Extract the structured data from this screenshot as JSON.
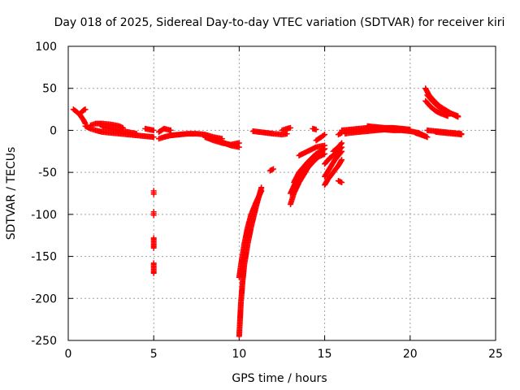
{
  "chart_data": {
    "type": "scatter",
    "title": "Day 018 of 2025, Sidereal Day-to-day VTEC variation (SDTVAR) for receiver kiri",
    "xlabel": "GPS time / hours",
    "ylabel": "SDTVAR / TECUs",
    "xlim": [
      0,
      25
    ],
    "ylim": [
      -250,
      100
    ],
    "xticks": [
      0,
      5,
      10,
      15,
      20,
      25
    ],
    "yticks": [
      100,
      50,
      0,
      -50,
      -100,
      -150,
      -200,
      -250
    ],
    "grid": true,
    "marker": "+",
    "color": "#ff0000",
    "segments": [
      {
        "id": "s1",
        "x": [
          0.3,
          0.5,
          0.7,
          0.9,
          1.0
        ],
        "y": [
          25,
          22,
          18,
          12,
          8
        ]
      },
      {
        "id": "s2",
        "x": [
          0.7,
          0.8,
          0.9,
          1.0
        ],
        "y": [
          20,
          22,
          24,
          25
        ]
      },
      {
        "id": "s3",
        "x": [
          1.0,
          1.3,
          1.6,
          2.0,
          2.5,
          3.0,
          3.5,
          4.0,
          4.5,
          5.0
        ],
        "y": [
          5,
          2,
          0,
          -2,
          -3,
          -4,
          -5,
          -6,
          -7,
          -8
        ]
      },
      {
        "id": "s4",
        "x": [
          1.3,
          1.6,
          2.0,
          2.5,
          3.0,
          3.2
        ],
        "y": [
          6,
          8,
          8,
          7,
          5,
          3
        ]
      },
      {
        "id": "s5",
        "x": [
          2.0,
          2.5,
          3.0,
          3.5,
          4.0
        ],
        "y": [
          4,
          2,
          0,
          -2,
          -4
        ]
      },
      {
        "id": "s6",
        "x": [
          4.5,
          5.0
        ],
        "y": [
          2,
          0
        ]
      },
      {
        "id": "s7",
        "x": [
          5.0,
          5.0,
          5.0
        ],
        "y": [
          -72,
          -74,
          -76
        ]
      },
      {
        "id": "s8",
        "x": [
          5.0,
          5.0,
          5.0
        ],
        "y": [
          -97,
          -99,
          -101
        ]
      },
      {
        "id": "s9",
        "x": [
          5.0,
          5.0,
          5.0,
          5.0,
          5.0
        ],
        "y": [
          -128,
          -131,
          -134,
          -137,
          -140
        ]
      },
      {
        "id": "s10",
        "x": [
          5.0,
          5.0,
          5.0,
          5.0,
          5.0
        ],
        "y": [
          -158,
          -161,
          -164,
          -167,
          -170
        ]
      },
      {
        "id": "s11",
        "x": [
          5.3,
          5.6,
          6.0,
          6.5,
          7.0,
          7.5,
          8.0,
          8.5,
          9.0
        ],
        "y": [
          -10,
          -8,
          -6,
          -5,
          -4,
          -4,
          -5,
          -8,
          -10
        ]
      },
      {
        "id": "s12",
        "x": [
          5.3,
          5.6,
          6.0
        ],
        "y": [
          -2,
          2,
          0
        ]
      },
      {
        "id": "s13",
        "x": [
          8.0,
          8.5,
          9.0,
          9.5,
          10.0
        ],
        "y": [
          -8,
          -12,
          -15,
          -17,
          -15
        ]
      },
      {
        "id": "s14",
        "x": [
          9.0,
          9.5,
          10.0
        ],
        "y": [
          -14,
          -18,
          -20
        ]
      },
      {
        "id": "s15",
        "x": [
          10.0,
          10.05,
          10.1,
          10.2,
          10.3,
          10.5,
          10.7,
          11.0,
          11.3
        ],
        "y": [
          -245,
          -225,
          -205,
          -180,
          -160,
          -135,
          -115,
          -90,
          -68
        ]
      },
      {
        "id": "s16",
        "x": [
          10.0,
          10.1,
          10.2,
          10.3,
          10.5,
          10.7,
          11.0,
          11.3
        ],
        "y": [
          -175,
          -160,
          -148,
          -135,
          -115,
          -100,
          -85,
          -72
        ]
      },
      {
        "id": "s17",
        "x": [
          11.8,
          12.0
        ],
        "y": [
          -48,
          -46
        ]
      },
      {
        "id": "s18",
        "x": [
          10.8,
          11.2,
          11.6,
          12.0,
          12.5,
          12.8
        ],
        "y": [
          -1,
          -2,
          -3,
          -4,
          -5,
          -4
        ]
      },
      {
        "id": "s19",
        "x": [
          12.5,
          12.8,
          13.0
        ],
        "y": [
          0,
          2,
          3
        ]
      },
      {
        "id": "s20",
        "x": [
          13.0,
          13.2,
          13.5,
          13.8,
          14.0,
          14.3,
          14.6,
          15.0
        ],
        "y": [
          -88,
          -75,
          -62,
          -52,
          -45,
          -38,
          -32,
          -28
        ]
      },
      {
        "id": "s21",
        "x": [
          13.0,
          13.3,
          13.6,
          14.0,
          14.3,
          14.6,
          15.0
        ],
        "y": [
          -75,
          -62,
          -50,
          -40,
          -33,
          -28,
          -22
        ]
      },
      {
        "id": "s22",
        "x": [
          13.2,
          13.5,
          14.0,
          14.5,
          15.0
        ],
        "y": [
          -62,
          -50,
          -38,
          -28,
          -22
        ]
      },
      {
        "id": "s23",
        "x": [
          13.5,
          14.0,
          14.5,
          15.0
        ],
        "y": [
          -30,
          -25,
          -20,
          -18
        ]
      },
      {
        "id": "s24",
        "x": [
          14.5,
          14.8,
          15.0
        ],
        "y": [
          -12,
          -8,
          -5
        ]
      },
      {
        "id": "s25",
        "x": [
          14.3,
          14.5
        ],
        "y": [
          2,
          1
        ]
      },
      {
        "id": "s26",
        "x": [
          15.0,
          15.2,
          15.5,
          15.8,
          16.0
        ],
        "y": [
          -65,
          -58,
          -50,
          -42,
          -35
        ]
      },
      {
        "id": "s27",
        "x": [
          15.0,
          15.3,
          15.6,
          16.0
        ],
        "y": [
          -55,
          -45,
          -35,
          -25
        ]
      },
      {
        "id": "s28",
        "x": [
          15.0,
          15.3,
          15.6,
          16.0
        ],
        "y": [
          -40,
          -33,
          -28,
          -20
        ]
      },
      {
        "id": "s29",
        "x": [
          15.5,
          15.8,
          16.0
        ],
        "y": [
          -25,
          -20,
          -15
        ]
      },
      {
        "id": "s30",
        "x": [
          15.8,
          16.0
        ],
        "y": [
          -60,
          -62
        ]
      },
      {
        "id": "s31",
        "x": [
          15.8,
          16.0
        ],
        "y": [
          -5,
          -3
        ]
      },
      {
        "id": "s32",
        "x": [
          16.0,
          16.5,
          17.0,
          17.5,
          18.0,
          18.5,
          19.0,
          19.5,
          20.0,
          20.5,
          21.0
        ],
        "y": [
          0,
          1,
          2,
          3,
          2,
          1,
          0,
          0,
          -1,
          -3,
          -8
        ]
      },
      {
        "id": "s33",
        "x": [
          16.2,
          16.5,
          17.0,
          17.5,
          18.0,
          18.5,
          19.0
        ],
        "y": [
          -4,
          -3,
          -2,
          -1,
          0,
          1,
          2
        ]
      },
      {
        "id": "s34",
        "x": [
          17.5,
          18.0,
          18.5,
          19.0,
          19.5,
          20.0
        ],
        "y": [
          5,
          4,
          3,
          3,
          2,
          1
        ]
      },
      {
        "id": "s35",
        "x": [
          20.3,
          20.6,
          21.0
        ],
        "y": [
          -3,
          -5,
          -8
        ]
      },
      {
        "id": "s36",
        "x": [
          21.0,
          21.5,
          22.0,
          22.5,
          23.0
        ],
        "y": [
          0,
          -1,
          -2,
          -3,
          -4
        ]
      },
      {
        "id": "s37",
        "x": [
          21.5,
          22.0,
          22.5,
          23.0
        ],
        "y": [
          -2,
          -3,
          -4,
          -5
        ]
      },
      {
        "id": "s38",
        "x": [
          20.9,
          21.1,
          21.4,
          21.7,
          22.0,
          22.4,
          22.8
        ],
        "y": [
          50,
          42,
          35,
          29,
          25,
          20,
          17
        ]
      },
      {
        "id": "s39",
        "x": [
          21.0,
          21.3,
          21.6,
          22.0,
          22.4,
          22.8
        ],
        "y": [
          42,
          35,
          29,
          24,
          20,
          16
        ]
      },
      {
        "id": "s40",
        "x": [
          20.9,
          21.2,
          21.5,
          21.8,
          22.2
        ],
        "y": [
          35,
          28,
          23,
          20,
          17
        ]
      }
    ]
  }
}
